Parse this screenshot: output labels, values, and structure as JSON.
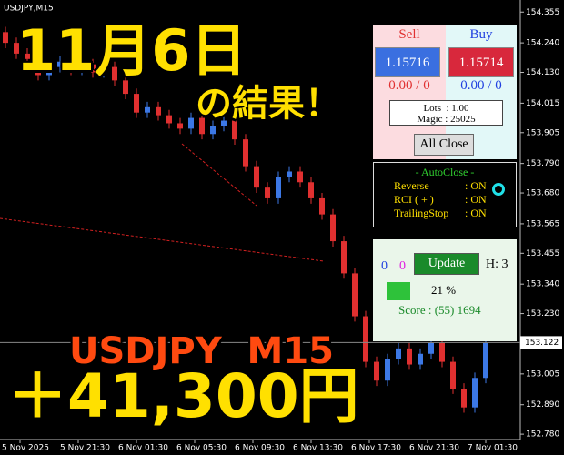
{
  "window_title": "USDJPY,M15",
  "overlay": {
    "date": "11月6日",
    "result": "の結果！",
    "symbol": "USDJPY  M15",
    "profit": "＋41,300円"
  },
  "trade_panel": {
    "sell_label": "Sell",
    "buy_label": "Buy",
    "sell_price": "1.15716",
    "buy_price": "1.15714",
    "sell_stats": "0.00 / 0",
    "buy_stats": "0.00 / 0",
    "lots": "Lots  : 1.00",
    "magic": "Magic : 25025",
    "close_button": "All Close"
  },
  "autoclose_panel": {
    "title": "- AutoClose -",
    "items": [
      {
        "name": "Reverse",
        "value": ": ON"
      },
      {
        "name": "RCI ( + )",
        "value": ": ON"
      },
      {
        "name": "TrailingStop",
        "value": ": ON"
      }
    ]
  },
  "status_panel": {
    "count_a": "0",
    "count_b": "0",
    "update_button": "Update",
    "hours": "H: 3",
    "percent": "21 %",
    "score": "Score : (55) 1694"
  },
  "chart": {
    "ylim": [
      152.76,
      154.4
    ],
    "yticks": [
      154.355,
      {
        "value": 154.24,
        "label": "154.240"
      },
      {
        "value": 154.13,
        "label": "154.130"
      },
      154.015,
      153.905,
      {
        "value": 153.79,
        "label": "153.790"
      },
      {
        "value": 153.68,
        "label": "153.680"
      },
      153.565,
      153.455,
      {
        "value": 153.34,
        "label": "153.340"
      },
      {
        "value": 153.23,
        "label": "153.230"
      },
      153.005,
      {
        "value": 152.89,
        "label": "152.890"
      },
      {
        "value": 152.78,
        "label": "152.780"
      }
    ],
    "current_price": 153.122,
    "xlabels": [
      "5 Nov 2025",
      "5 Nov 21:30",
      "6 Nov 01:30",
      "6 Nov 05:30",
      "6 Nov 09:30",
      "6 Nov 13:30",
      "6 Nov 17:30",
      "6 Nov 21:30",
      "7 Nov 01:30"
    ],
    "up_color": "#3c78e6",
    "down_color": "#e03030",
    "candles": {
      "open": [
        154.28,
        154.24,
        154.2,
        154.18,
        154.12,
        154.15,
        154.17,
        154.14,
        154.16,
        154.13,
        154.15,
        154.1,
        154.05,
        153.98,
        154.0,
        153.97,
        153.94,
        153.92,
        153.96,
        153.9,
        153.93,
        153.95,
        153.88,
        153.78,
        153.7,
        153.66,
        153.74,
        153.76,
        153.72,
        153.66,
        153.6,
        153.5,
        153.38,
        153.22,
        153.05,
        152.98,
        153.06,
        153.1,
        153.04,
        153.08,
        153.12,
        153.05,
        152.95,
        152.88,
        152.99
      ],
      "high": [
        154.3,
        154.26,
        154.22,
        154.2,
        154.17,
        154.19,
        154.19,
        154.18,
        154.18,
        154.17,
        154.17,
        154.12,
        154.07,
        154.02,
        154.02,
        153.99,
        153.96,
        153.98,
        153.98,
        153.95,
        153.97,
        153.97,
        153.9,
        153.8,
        153.72,
        153.76,
        153.78,
        153.78,
        153.74,
        153.68,
        153.62,
        153.52,
        153.4,
        153.24,
        153.07,
        153.08,
        153.12,
        153.12,
        153.1,
        153.14,
        153.14,
        153.07,
        152.97,
        153.01,
        153.14
      ],
      "low": [
        154.22,
        154.18,
        154.16,
        154.1,
        154.1,
        154.13,
        154.12,
        154.12,
        154.11,
        154.11,
        154.08,
        154.03,
        153.96,
        153.96,
        153.95,
        153.92,
        153.9,
        153.9,
        153.88,
        153.88,
        153.91,
        153.86,
        153.76,
        153.68,
        153.64,
        153.64,
        153.72,
        153.7,
        153.64,
        153.58,
        153.48,
        153.36,
        153.2,
        153.03,
        152.96,
        152.96,
        153.04,
        153.02,
        153.02,
        153.06,
        153.03,
        152.93,
        152.86,
        152.86,
        152.97
      ],
      "close": [
        154.24,
        154.2,
        154.18,
        154.12,
        154.15,
        154.17,
        154.14,
        154.16,
        154.13,
        154.15,
        154.1,
        154.05,
        153.98,
        154.0,
        153.97,
        153.94,
        153.92,
        153.96,
        153.9,
        153.93,
        153.95,
        153.88,
        153.78,
        153.7,
        153.66,
        153.74,
        153.76,
        153.72,
        153.66,
        153.6,
        153.5,
        153.38,
        153.22,
        153.05,
        152.98,
        153.06,
        153.1,
        153.04,
        153.08,
        153.12,
        153.05,
        152.95,
        152.88,
        152.99,
        153.12
      ]
    }
  }
}
